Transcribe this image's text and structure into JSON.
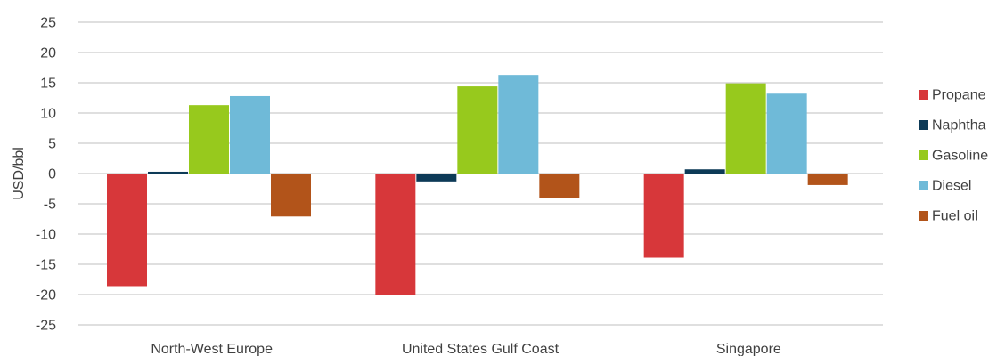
{
  "chart_data": {
    "type": "bar",
    "title": "",
    "xlabel": "",
    "ylabel": "USD/bbl",
    "ylim": [
      -25,
      25
    ],
    "yticks": [
      25,
      20,
      15,
      10,
      5,
      0,
      -5,
      -10,
      -15,
      -20,
      -25
    ],
    "grid": true,
    "legend_position": "right",
    "categories": [
      "North-West Europe",
      "United States Gulf Coast",
      "Singapore"
    ],
    "series": [
      {
        "name": "Propane",
        "color": "#d7373a",
        "values": [
          -18.6,
          -20.1,
          -13.9
        ]
      },
      {
        "name": "Naphtha",
        "color": "#0d3a57",
        "values": [
          0.3,
          -1.3,
          0.7
        ]
      },
      {
        "name": "Gasoline",
        "color": "#97c91d",
        "values": [
          11.3,
          14.4,
          14.9
        ]
      },
      {
        "name": "Diesel",
        "color": "#6fbad8",
        "values": [
          12.8,
          16.3,
          13.2
        ]
      },
      {
        "name": "Fuel oil",
        "color": "#b2541a",
        "values": [
          -7.1,
          -4.0,
          -1.9
        ]
      }
    ]
  }
}
